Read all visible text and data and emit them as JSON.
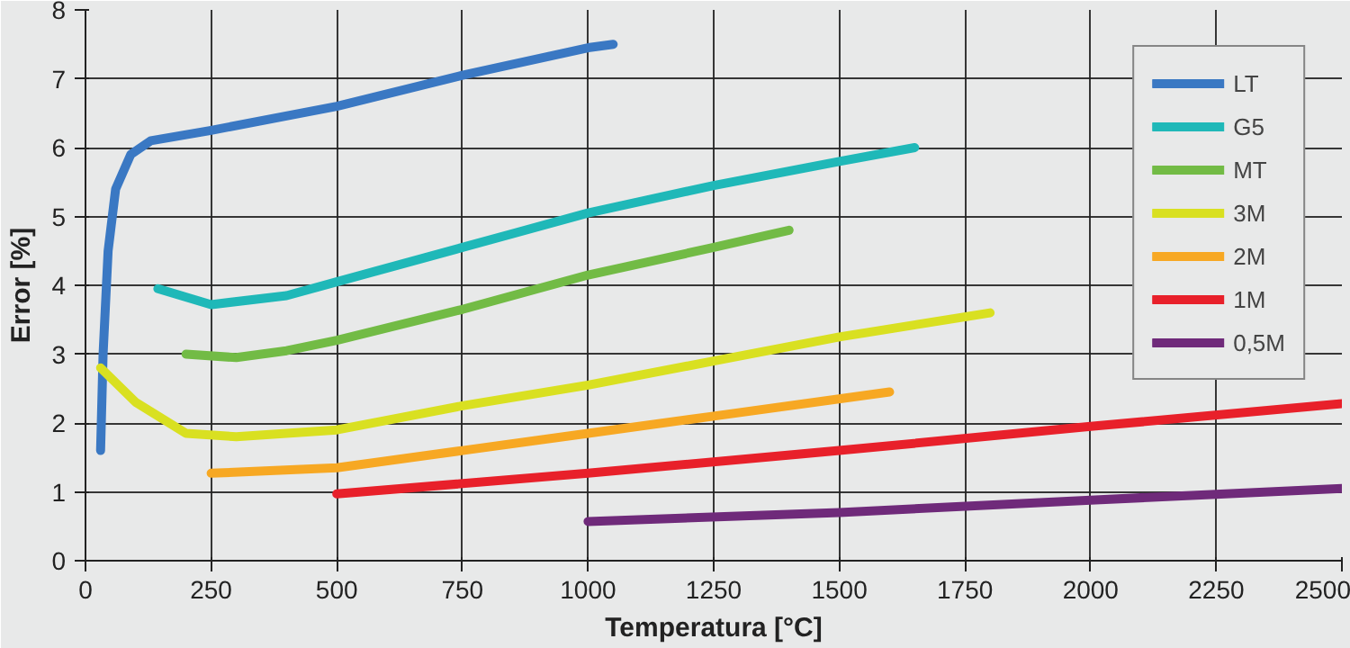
{
  "chart_data": {
    "type": "line",
    "xlabel": "Temperatura [°C]",
    "ylabel": "Error [%]",
    "xlim": [
      0,
      2500
    ],
    "ylim": [
      0,
      8
    ],
    "xticks": [
      0,
      250,
      500,
      750,
      1000,
      1250,
      1500,
      1750,
      2000,
      2250,
      2500
    ],
    "yticks": [
      0,
      1,
      2,
      3,
      4,
      5,
      6,
      7,
      8
    ],
    "grid": true,
    "legend": "top right",
    "line_style": "solid",
    "series": [
      {
        "name": "LT",
        "color": "#3a78c3",
        "x": [
          30,
          35,
          45,
          60,
          90,
          130,
          250,
          500,
          750,
          1000,
          1050
        ],
        "values": [
          1.6,
          3,
          4.5,
          5.4,
          5.9,
          6.1,
          6.25,
          6.6,
          7.05,
          7.45,
          7.5
        ]
      },
      {
        "name": "G5",
        "color": "#1fb8b8",
        "x": [
          144,
          250,
          400,
          500,
          750,
          1000,
          1250,
          1500,
          1650
        ],
        "values": [
          3.95,
          3.72,
          3.85,
          4.05,
          4.55,
          5.05,
          5.45,
          5.8,
          6.0
        ]
      },
      {
        "name": "MT",
        "color": "#72bb45",
        "x": [
          200,
          300,
          400,
          500,
          750,
          1000,
          1250,
          1400
        ],
        "values": [
          3.0,
          2.95,
          3.05,
          3.2,
          3.65,
          4.15,
          4.55,
          4.8
        ]
      },
      {
        "name": "3M",
        "color": "#d9e021",
        "x": [
          30,
          100,
          200,
          300,
          500,
          750,
          1000,
          1250,
          1500,
          1800
        ],
        "values": [
          2.8,
          2.3,
          1.85,
          1.8,
          1.9,
          2.25,
          2.55,
          2.9,
          3.25,
          3.6
        ]
      },
      {
        "name": "2M",
        "color": "#f7a823",
        "x": [
          250,
          500,
          750,
          1000,
          1250,
          1600
        ],
        "values": [
          1.27,
          1.35,
          1.6,
          1.85,
          2.1,
          2.45
        ]
      },
      {
        "name": "1M",
        "color": "#e8202a",
        "x": [
          500,
          1000,
          1500,
          2000,
          2500
        ],
        "values": [
          0.97,
          1.27,
          1.6,
          1.95,
          2.28
        ]
      },
      {
        "name": "0,5M",
        "color": "#6f2a7a",
        "x": [
          1000,
          1500,
          2000,
          2500
        ],
        "values": [
          0.57,
          0.7,
          0.88,
          1.05
        ]
      }
    ]
  }
}
